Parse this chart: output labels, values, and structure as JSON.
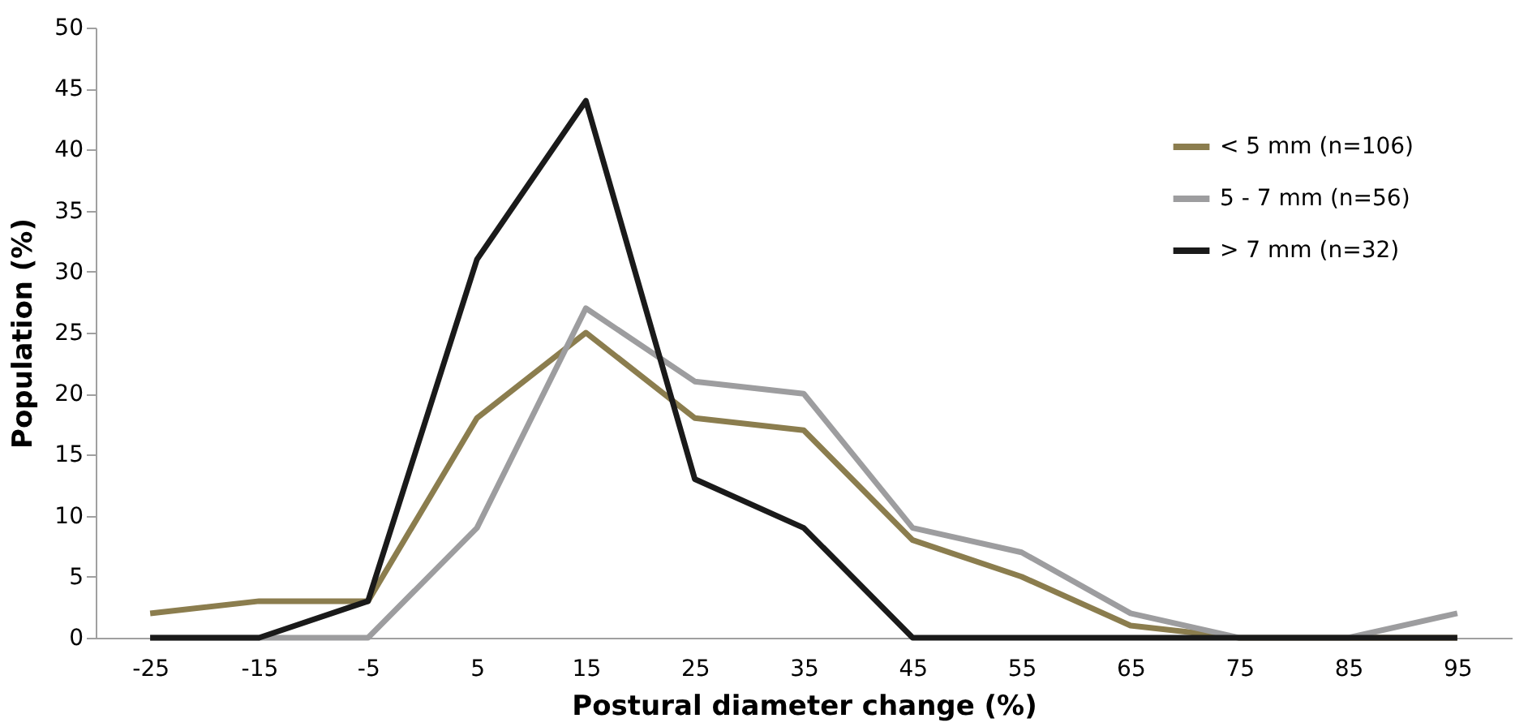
{
  "chart_data": {
    "type": "line",
    "xlabel": "Postural  diameter change (%)",
    "ylabel": "Population (%)",
    "categories": [
      "-25",
      "-15",
      "-5",
      "5",
      "15",
      "25",
      "35",
      "45",
      "55",
      "65",
      "75",
      "85",
      "95"
    ],
    "series": [
      {
        "name": "< 5 mm (n=106)",
        "color": "#8b7d4e",
        "values": [
          2,
          3,
          3,
          18,
          25,
          18,
          17,
          8,
          5,
          1,
          0,
          0,
          0
        ]
      },
      {
        "name": "5 - 7 mm (n=56)",
        "color": "#9d9d9f",
        "values": [
          0,
          0,
          0,
          9,
          27,
          21,
          20,
          9,
          7,
          2,
          0,
          0,
          2
        ]
      },
      {
        "name": "> 7 mm (n=32)",
        "color": "#1a1a1a",
        "values": [
          0,
          0,
          3,
          31,
          44,
          13,
          9,
          0,
          0,
          0,
          0,
          0,
          0
        ]
      }
    ],
    "ylim": [
      0,
      50
    ],
    "yticks": [
      0,
      5,
      10,
      15,
      20,
      25,
      30,
      35,
      40,
      45,
      50
    ],
    "grid": false,
    "legend": "top right",
    "marker": "none",
    "line_style": "solid"
  }
}
